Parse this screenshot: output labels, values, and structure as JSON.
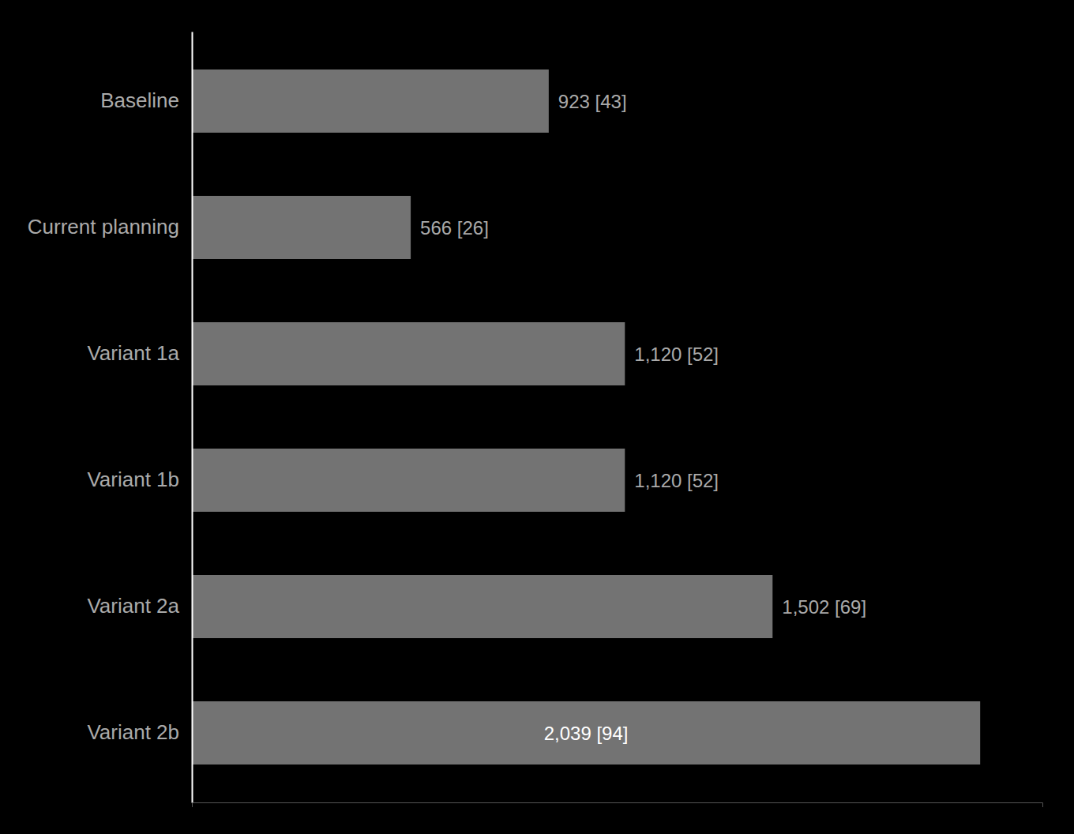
{
  "chart_data": {
    "type": "bar",
    "orientation": "horizontal",
    "categories": [
      "Baseline",
      "Current planning",
      "Variant 1a",
      "Variant 1b",
      "Variant 2a",
      "Variant 2b"
    ],
    "values": [
      923,
      566,
      1120,
      1120,
      1502,
      2039
    ],
    "value_labels": [
      "923 [43]",
      "566 [26]",
      "1,120 [52]",
      "1,120 [52]",
      "1,502 [69]",
      "2,039 [94]"
    ],
    "data_labels": true,
    "color": "#737373",
    "xlim": [
      0,
      2200
    ],
    "tick_labels": "y"
  }
}
